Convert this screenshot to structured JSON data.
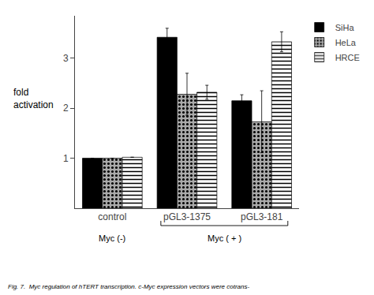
{
  "chart_data": {
    "type": "bar",
    "categories": [
      "control",
      "pGL3-1375",
      "pGL3-181"
    ],
    "series": [
      {
        "name": "SiHa",
        "color": "black",
        "values": [
          1.0,
          3.42,
          2.15
        ],
        "errors": [
          0.0,
          0.18,
          0.12
        ]
      },
      {
        "name": "HeLa",
        "color": "#aaaaaa",
        "values": [
          1.0,
          2.28,
          1.73
        ],
        "errors": [
          0.0,
          0.42,
          0.62
        ]
      },
      {
        "name": "HRCE",
        "color": "white",
        "values": [
          1.02,
          2.32,
          3.33
        ],
        "errors": [
          0.0,
          0.14,
          0.2
        ]
      }
    ],
    "ylabel": [
      "fold",
      "activation"
    ],
    "ylim": [
      0,
      3.85
    ],
    "yticks": [
      1,
      2,
      3
    ],
    "grid": false,
    "legend": "upper right",
    "annotations": [
      {
        "text": "Myc (-)",
        "categories": [
          "control"
        ]
      },
      {
        "text": "Myc ( + )",
        "categories": [
          "pGL3-1375",
          "pGL3-181"
        ]
      }
    ],
    "caption": "Fig. 7.  Myc regulation of hTERT transcription. c-Myc expression vectors were cotrans-"
  }
}
